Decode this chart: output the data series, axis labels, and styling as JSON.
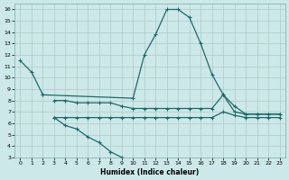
{
  "xlabel": "Humidex (Indice chaleur)",
  "bg_color": "#cde8e8",
  "line_color": "#1a6b6b",
  "grid_color": "#b0c8c8",
  "xlim": [
    -0.5,
    23.5
  ],
  "ylim": [
    3,
    16.5
  ],
  "xticks": [
    0,
    1,
    2,
    3,
    4,
    5,
    6,
    7,
    8,
    9,
    10,
    11,
    12,
    13,
    14,
    15,
    16,
    17,
    18,
    19,
    20,
    21,
    22,
    23
  ],
  "yticks": [
    3,
    4,
    5,
    6,
    7,
    8,
    9,
    10,
    11,
    12,
    13,
    14,
    15,
    16
  ],
  "lineA_x": [
    0,
    1,
    2,
    10,
    11,
    12,
    13,
    14,
    15,
    16,
    17,
    18,
    19,
    20,
    21,
    22,
    23
  ],
  "lineA_y": [
    11.5,
    10.5,
    8.5,
    8.2,
    12.0,
    13.8,
    16.0,
    16.0,
    15.3,
    13.0,
    10.3,
    8.5,
    7.5,
    6.8,
    6.8,
    6.8,
    6.8
  ],
  "lineB_x": [
    3,
    4,
    5,
    6,
    7,
    8,
    9,
    10,
    11,
    12,
    13,
    14,
    15,
    16,
    17,
    18,
    19,
    20,
    21,
    22,
    23
  ],
  "lineB_y": [
    8.0,
    8.0,
    7.8,
    7.8,
    7.8,
    7.8,
    7.5,
    7.3,
    7.3,
    7.3,
    7.3,
    7.3,
    7.3,
    7.3,
    7.3,
    8.5,
    7.0,
    6.8,
    6.8,
    6.8,
    6.8
  ],
  "lineC_x": [
    3,
    4,
    5,
    6,
    7,
    8,
    9,
    10,
    11,
    12,
    13,
    14,
    15,
    16,
    17,
    18,
    19,
    20,
    21,
    22,
    23
  ],
  "lineC_y": [
    6.5,
    6.5,
    6.5,
    6.5,
    6.5,
    6.5,
    6.5,
    6.5,
    6.5,
    6.5,
    6.5,
    6.5,
    6.5,
    6.5,
    6.5,
    7.0,
    6.7,
    6.5,
    6.5,
    6.5,
    6.5
  ],
  "lineD_x": [
    3,
    4,
    5,
    6,
    7,
    8,
    9
  ],
  "lineD_y": [
    6.5,
    5.8,
    5.5,
    4.8,
    4.3,
    3.5,
    3.0
  ]
}
